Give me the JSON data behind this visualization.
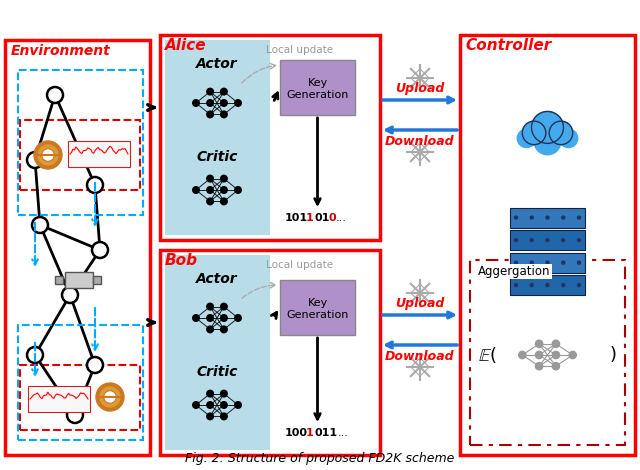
{
  "title": "Fig. 2: Structure of proposed FD2K scheme",
  "bg_color": "#ffffff",
  "red": "#ff0000",
  "darkred": "#aa0000",
  "blue": "#2277dd",
  "gray": "#999999",
  "black": "#000000",
  "actor_critic_bg": "#b8dce8",
  "key_gen_bg": "#b090c8",
  "env_label": "Environment",
  "alice_label": "Alice",
  "bob_label": "Bob",
  "ctrl_label": "Controller",
  "agg_label": "Aggergation",
  "upload_label": "Upload",
  "download_label": "Download",
  "local_update_label": "Local update",
  "alice_binary": "101¹1010...",
  "bob_binary": "100¹1011...",
  "caption": "Fig. 2: Structure of proposed FD2K scheme"
}
